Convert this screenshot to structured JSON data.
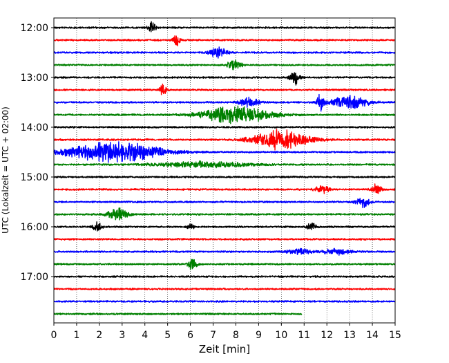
{
  "chart_data": {
    "type": "line",
    "xlabel": "Zeit  [min]",
    "ylabel": "UTC (Lokalzeit = UTC + 02:00)",
    "xlim": [
      0,
      15
    ],
    "x_ticks": [
      "0",
      "1",
      "2",
      "3",
      "4",
      "5",
      "6",
      "7",
      "8",
      "9",
      "10",
      "11",
      "12",
      "13",
      "14",
      "15"
    ],
    "y_ticks": [
      "12:00",
      "13:00",
      "14:00",
      "15:00",
      "16:00",
      "17:00"
    ],
    "grid": "vertical-dotted",
    "trace_colors": [
      "#000000",
      "#ff0000",
      "#0000ff",
      "#008000"
    ],
    "rows_start": "12:00",
    "row_minutes": 15,
    "traces": [
      {
        "color": "#000000",
        "events": [
          {
            "t": 4.3,
            "amp": 10,
            "dur": 0.15
          }
        ]
      },
      {
        "color": "#ff0000",
        "events": [
          {
            "t": 5.4,
            "amp": 9,
            "dur": 0.15
          }
        ]
      },
      {
        "color": "#0000ff",
        "events": [
          {
            "t": 7.2,
            "amp": 7,
            "dur": 0.4
          }
        ]
      },
      {
        "color": "#008000",
        "events": [
          {
            "t": 7.9,
            "amp": 8,
            "dur": 0.3
          }
        ]
      },
      {
        "color": "#000000",
        "events": [
          {
            "t": 10.6,
            "amp": 10,
            "dur": 0.2
          }
        ]
      },
      {
        "color": "#ff0000",
        "events": [
          {
            "t": 4.8,
            "amp": 8,
            "dur": 0.15
          }
        ]
      },
      {
        "color": "#0000ff",
        "events": [
          {
            "t": 8.6,
            "amp": 7,
            "dur": 0.4
          },
          {
            "t": 11.7,
            "amp": 13,
            "dur": 0.15
          },
          {
            "t": 13.0,
            "amp": 9,
            "dur": 0.8
          }
        ]
      },
      {
        "color": "#008000",
        "events": [
          {
            "t": 8.0,
            "amp": 12,
            "dur": 1.5
          }
        ]
      },
      {
        "color": "#000000",
        "events": []
      },
      {
        "color": "#ff0000",
        "events": [
          {
            "t": 10.0,
            "amp": 14,
            "dur": 1.2
          }
        ]
      },
      {
        "color": "#0000ff",
        "events": [
          {
            "t": 2.7,
            "amp": 15,
            "dur": 2.0
          }
        ]
      },
      {
        "color": "#008000",
        "events": [
          {
            "t": 6.5,
            "amp": 4,
            "dur": 2.0
          }
        ]
      },
      {
        "color": "#000000",
        "events": []
      },
      {
        "color": "#ff0000",
        "events": [
          {
            "t": 11.8,
            "amp": 6,
            "dur": 0.3
          },
          {
            "t": 14.2,
            "amp": 9,
            "dur": 0.2
          }
        ]
      },
      {
        "color": "#0000ff",
        "events": [
          {
            "t": 13.6,
            "amp": 7,
            "dur": 0.3
          }
        ]
      },
      {
        "color": "#008000",
        "events": [
          {
            "t": 2.8,
            "amp": 10,
            "dur": 0.4
          }
        ]
      },
      {
        "color": "#000000",
        "events": [
          {
            "t": 1.9,
            "amp": 6,
            "dur": 0.2
          },
          {
            "t": 6.0,
            "amp": 5,
            "dur": 0.15
          },
          {
            "t": 11.3,
            "amp": 6,
            "dur": 0.2
          }
        ]
      },
      {
        "color": "#ff0000",
        "events": []
      },
      {
        "color": "#0000ff",
        "events": [
          {
            "t": 10.8,
            "amp": 4,
            "dur": 0.5
          },
          {
            "t": 12.4,
            "amp": 4,
            "dur": 0.6
          }
        ]
      },
      {
        "color": "#008000",
        "events": [
          {
            "t": 6.1,
            "amp": 9,
            "dur": 0.2
          }
        ]
      },
      {
        "color": "#000000",
        "events": []
      },
      {
        "color": "#ff0000",
        "events": []
      },
      {
        "color": "#0000ff",
        "events": []
      },
      {
        "color": "#008000",
        "events": [],
        "end": 10.9
      }
    ]
  }
}
